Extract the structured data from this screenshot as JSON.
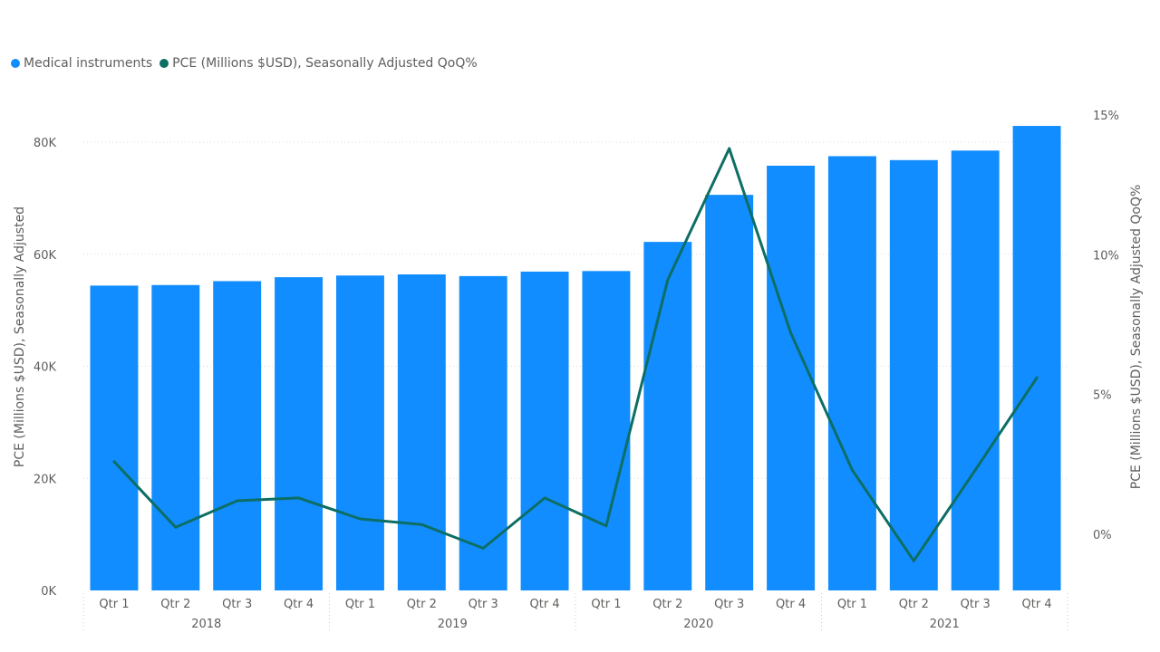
{
  "chart_data": {
    "type": "bar",
    "legend_placement": "top-left",
    "grid": true,
    "categories": [
      "Qtr 1",
      "Qtr 2",
      "Qtr 3",
      "Qtr 4",
      "Qtr 1",
      "Qtr 2",
      "Qtr 3",
      "Qtr 4",
      "Qtr 1",
      "Qtr 2",
      "Qtr 3",
      "Qtr 4",
      "Qtr 1",
      "Qtr 2",
      "Qtr 3",
      "Qtr 4"
    ],
    "year_groups": [
      {
        "label": "2018",
        "count": 4
      },
      {
        "label": "2019",
        "count": 4
      },
      {
        "label": "2020",
        "count": 4
      },
      {
        "label": "2021",
        "count": 4
      }
    ],
    "series": [
      {
        "name": "Medical instruments",
        "type": "bar",
        "axis": "left",
        "color": "#118dff",
        "values": [
          54400,
          54500,
          55200,
          55900,
          56200,
          56400,
          56100,
          56900,
          57000,
          62200,
          70600,
          75800,
          77500,
          76800,
          78500,
          82900
        ]
      },
      {
        "name": "PCE (Millions $USD), Seasonally Adjusted QoQ%",
        "type": "line",
        "axis": "right",
        "color": "#0d6e64",
        "values": [
          2.6,
          0.25,
          1.2,
          1.3,
          0.55,
          0.35,
          -0.5,
          1.3,
          0.3,
          9.1,
          13.8,
          7.2,
          2.3,
          -0.95,
          2.3,
          5.6
        ]
      }
    ],
    "y_left": {
      "label": "PCE (Millions $USD), Seasonally Adjusted",
      "range": [
        0,
        80000
      ],
      "ticks": [
        {
          "value": 0,
          "label": "0K"
        },
        {
          "value": 20000,
          "label": "20K"
        },
        {
          "value": 40000,
          "label": "40K"
        },
        {
          "value": 60000,
          "label": "60K"
        },
        {
          "value": 80000,
          "label": "80K"
        }
      ]
    },
    "y_right": {
      "label": "PCE (Millions $USD), Seasonally Adjusted QoQ%",
      "range": [
        0,
        15
      ],
      "ticks": [
        {
          "value": 0,
          "label": "0%"
        },
        {
          "value": 5,
          "label": "5%"
        },
        {
          "value": 10,
          "label": "10%"
        },
        {
          "value": 15,
          "label": "15%"
        }
      ]
    }
  }
}
